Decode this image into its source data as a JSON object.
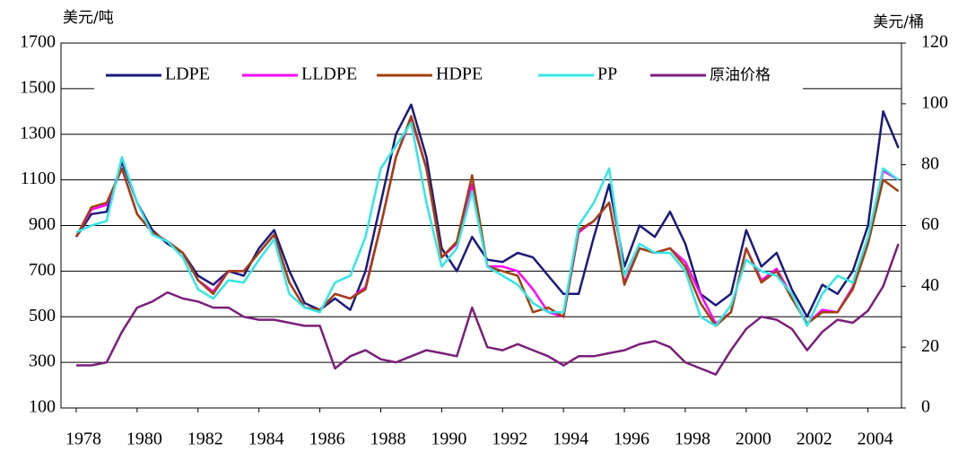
{
  "chart_data": {
    "type": "line",
    "y_label": "美元/吨",
    "y2_label": "美元/桶",
    "x": [
      1978,
      1978.5,
      1979,
      1979.5,
      1980,
      1980.5,
      1981,
      1981.5,
      1982,
      1982.5,
      1983,
      1983.5,
      1984,
      1984.5,
      1985,
      1985.5,
      1986,
      1986.5,
      1987,
      1987.5,
      1988,
      1988.5,
      1989,
      1989.5,
      1990,
      1990.5,
      1991,
      1991.5,
      1992,
      1992.5,
      1993,
      1993.5,
      1994,
      1994.5,
      1995,
      1995.5,
      1996,
      1996.5,
      1997,
      1997.5,
      1998,
      1998.5,
      1999,
      1999.5,
      2000,
      2000.5,
      2001,
      2001.5,
      2002,
      2002.5,
      2003,
      2003.5,
      2004,
      2004.5,
      2005
    ],
    "xlim": [
      1977.5,
      2005.1
    ],
    "xticks": [
      1978,
      1980,
      1982,
      1984,
      1986,
      1988,
      1990,
      1992,
      1994,
      1996,
      1998,
      2000,
      2002,
      2004
    ],
    "ylim": [
      100,
      1700
    ],
    "yticks": [
      100,
      300,
      500,
      700,
      900,
      1100,
      1300,
      1500,
      1700
    ],
    "y2lim": [
      0,
      120
    ],
    "y2ticks": [
      0,
      20,
      40,
      60,
      80,
      100,
      120
    ],
    "grid": true,
    "legend": "top",
    "series": [
      {
        "name": "LDPE",
        "color": "#1a1a7a",
        "values": [
          850,
          950,
          960,
          1180,
          1000,
          880,
          820,
          780,
          680,
          640,
          700,
          680,
          800,
          880,
          700,
          560,
          530,
          580,
          530,
          700,
          1000,
          1300,
          1430,
          1200,
          800,
          700,
          850,
          750,
          740,
          780,
          760,
          680,
          600,
          600,
          850,
          1080,
          720,
          900,
          850,
          960,
          820,
          600,
          550,
          600,
          880,
          720,
          780,
          620,
          500,
          640,
          600,
          700,
          900,
          1400,
          1240
        ]
      },
      {
        "name": "LLDPE",
        "color": "#ff00ff",
        "values": [
          850,
          970,
          990,
          1150,
          950,
          870,
          830,
          780,
          660,
          610,
          700,
          700,
          780,
          860,
          650,
          540,
          530,
          600,
          580,
          630,
          900,
          1200,
          1370,
          1150,
          760,
          820,
          1080,
          720,
          720,
          700,
          620,
          520,
          500,
          870,
          920,
          1000,
          650,
          800,
          780,
          800,
          740,
          600,
          470,
          520,
          800,
          660,
          710,
          590,
          470,
          530,
          520,
          630,
          830,
          1140,
          1100
        ]
      },
      {
        "name": "HDPE",
        "color": "#a0410d",
        "values": [
          850,
          980,
          1000,
          1150,
          950,
          870,
          830,
          780,
          660,
          600,
          700,
          700,
          780,
          860,
          650,
          540,
          530,
          600,
          580,
          620,
          900,
          1200,
          1380,
          1150,
          760,
          830,
          1120,
          720,
          700,
          680,
          520,
          540,
          500,
          880,
          920,
          1000,
          640,
          800,
          780,
          800,
          720,
          560,
          460,
          520,
          800,
          650,
          700,
          580,
          470,
          520,
          520,
          620,
          820,
          1100,
          1050
        ]
      },
      {
        "name": "PP",
        "color": "#33e6e6",
        "values": [
          870,
          900,
          920,
          1200,
          1000,
          860,
          830,
          760,
          620,
          580,
          660,
          650,
          750,
          840,
          600,
          540,
          520,
          650,
          680,
          850,
          1150,
          1250,
          1350,
          1000,
          720,
          800,
          1050,
          720,
          680,
          640,
          560,
          520,
          520,
          900,
          1000,
          1150,
          680,
          820,
          780,
          780,
          700,
          500,
          460,
          550,
          750,
          700,
          680,
          600,
          460,
          600,
          680,
          650,
          850,
          1150,
          1100
        ]
      },
      {
        "name": "原油价格",
        "color": "#7a1f7a",
        "axis": "y2",
        "values": [
          14,
          14,
          15,
          25,
          33,
          35,
          38,
          36,
          35,
          33,
          33,
          30,
          29,
          29,
          28,
          27,
          27,
          13,
          17,
          19,
          16,
          15,
          17,
          19,
          18,
          17,
          33,
          20,
          19,
          21,
          19,
          17,
          14,
          17,
          17,
          18,
          19,
          21,
          22,
          20,
          15,
          13,
          11,
          19,
          26,
          30,
          29,
          26,
          19,
          25,
          29,
          28,
          32,
          40,
          54
        ]
      }
    ]
  }
}
